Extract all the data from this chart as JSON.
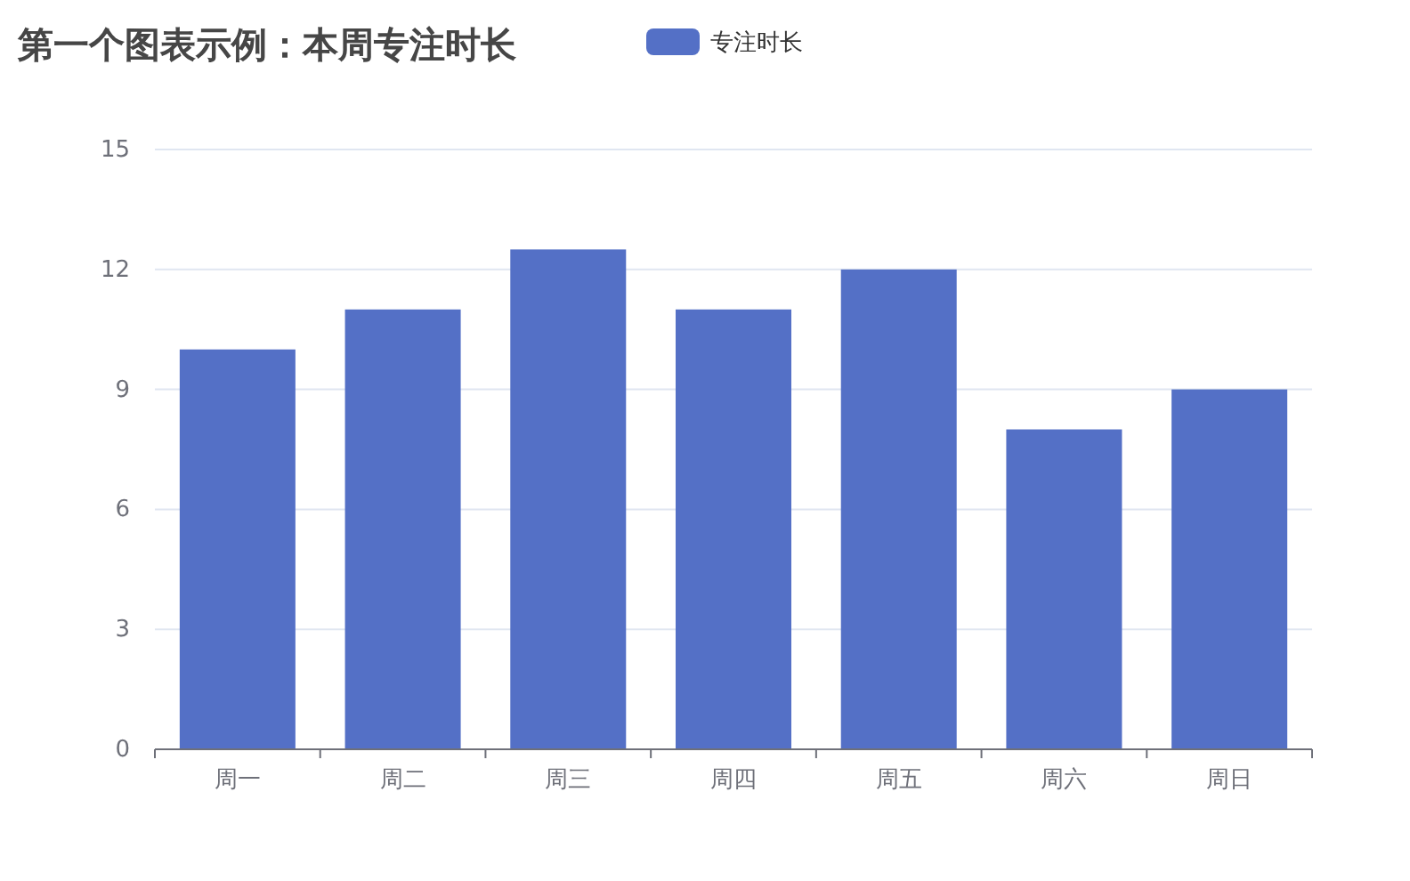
{
  "chart_data": {
    "type": "bar",
    "title": "第一个图表示例：本周专注时长",
    "categories": [
      "周一",
      "周二",
      "周三",
      "周四",
      "周五",
      "周六",
      "周日"
    ],
    "series": [
      {
        "name": "专注时长",
        "color": "#5470c6",
        "values": [
          10,
          11,
          12.5,
          11,
          12,
          8,
          9
        ]
      }
    ],
    "ylim": [
      0,
      15
    ],
    "yticks": [
      0,
      3,
      6,
      9,
      12,
      15
    ],
    "grid": "y",
    "legend": "top"
  }
}
